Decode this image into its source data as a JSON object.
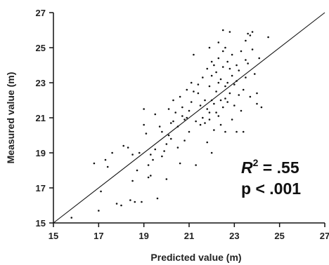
{
  "chart_data": {
    "type": "scatter",
    "title": "",
    "xlabel": "Predicted value (m)",
    "ylabel": "Measured value (m)",
    "xlim": [
      15,
      27
    ],
    "ylim": [
      15,
      27
    ],
    "xticks": [
      15,
      17,
      19,
      21,
      23,
      25,
      27
    ],
    "yticks": [
      15,
      17,
      19,
      21,
      23,
      25,
      27
    ],
    "grid": false,
    "annotation": {
      "r2_symbol": "R",
      "r2_exponent": "2",
      "r2_value": " = .55",
      "p_text": "p < .001"
    },
    "reference_line": {
      "x": [
        15,
        27
      ],
      "y": [
        15,
        27
      ]
    },
    "points": [
      [
        15.8,
        15.3
      ],
      [
        16.8,
        18.4
      ],
      [
        17.0,
        15.7
      ],
      [
        17.1,
        16.8
      ],
      [
        17.3,
        18.6
      ],
      [
        17.4,
        18.2
      ],
      [
        17.6,
        19.0
      ],
      [
        17.8,
        16.1
      ],
      [
        18.0,
        16.0
      ],
      [
        18.1,
        19.4
      ],
      [
        18.3,
        19.3
      ],
      [
        18.4,
        16.3
      ],
      [
        18.5,
        17.4
      ],
      [
        18.6,
        16.2
      ],
      [
        18.7,
        18.0
      ],
      [
        18.8,
        19.0
      ],
      [
        18.9,
        16.2
      ],
      [
        19.0,
        20.6
      ],
      [
        19.0,
        21.5
      ],
      [
        19.1,
        20.1
      ],
      [
        19.2,
        18.3
      ],
      [
        19.2,
        17.6
      ],
      [
        19.3,
        17.7
      ],
      [
        19.4,
        18.6
      ],
      [
        19.5,
        19.2
      ],
      [
        19.5,
        21.2
      ],
      [
        19.6,
        16.4
      ],
      [
        19.7,
        20.5
      ],
      [
        19.8,
        18.8
      ],
      [
        19.8,
        20.2
      ],
      [
        19.9,
        19.1
      ],
      [
        20.0,
        19.5
      ],
      [
        20.0,
        17.5
      ],
      [
        20.1,
        21.5
      ],
      [
        20.1,
        20.0
      ],
      [
        20.2,
        19.8
      ],
      [
        20.3,
        22.0
      ],
      [
        20.3,
        20.8
      ],
      [
        20.4,
        21.3
      ],
      [
        20.5,
        19.3
      ],
      [
        20.5,
        20.5
      ],
      [
        20.6,
        22.2
      ],
      [
        20.6,
        18.4
      ],
      [
        20.7,
        21.6
      ],
      [
        20.8,
        20.9
      ],
      [
        20.8,
        19.7
      ],
      [
        20.9,
        22.6
      ],
      [
        20.9,
        21.0
      ],
      [
        21.0,
        21.4
      ],
      [
        21.0,
        20.2
      ],
      [
        21.1,
        23.0
      ],
      [
        21.1,
        21.9
      ],
      [
        21.2,
        24.6
      ],
      [
        21.2,
        22.5
      ],
      [
        21.3,
        20.8
      ],
      [
        21.3,
        18.3
      ],
      [
        21.4,
        22.4
      ],
      [
        21.5,
        21.7
      ],
      [
        21.5,
        20.6
      ],
      [
        21.6,
        23.3
      ],
      [
        21.6,
        21.0
      ],
      [
        21.7,
        22.0
      ],
      [
        21.7,
        20.7
      ],
      [
        21.8,
        23.8
      ],
      [
        21.8,
        21.5
      ],
      [
        21.8,
        19.6
      ],
      [
        21.9,
        25.0
      ],
      [
        21.9,
        22.8
      ],
      [
        21.9,
        20.9
      ],
      [
        22.0,
        24.2
      ],
      [
        22.0,
        23.4
      ],
      [
        22.0,
        22.0
      ],
      [
        22.0,
        19.0
      ],
      [
        22.1,
        24.0
      ],
      [
        22.1,
        21.8
      ],
      [
        22.1,
        20.3
      ],
      [
        22.2,
        23.6
      ],
      [
        22.2,
        22.5
      ],
      [
        22.2,
        21.3
      ],
      [
        22.3,
        25.3
      ],
      [
        22.3,
        24.4
      ],
      [
        22.3,
        21.1
      ],
      [
        22.4,
        23.2
      ],
      [
        22.4,
        22.0
      ],
      [
        22.4,
        20.6
      ],
      [
        22.5,
        26.0
      ],
      [
        22.5,
        24.8
      ],
      [
        22.5,
        23.9
      ],
      [
        22.5,
        21.6
      ],
      [
        22.6,
        25.0
      ],
      [
        22.6,
        22.8
      ],
      [
        22.6,
        20.2
      ],
      [
        22.7,
        24.2
      ],
      [
        22.7,
        23.0
      ],
      [
        22.7,
        21.9
      ],
      [
        22.8,
        25.9
      ],
      [
        22.8,
        23.8
      ],
      [
        22.8,
        22.4
      ],
      [
        22.9,
        24.6
      ],
      [
        22.9,
        23.4
      ],
      [
        22.9,
        20.9
      ],
      [
        23.0,
        22.9
      ],
      [
        23.0,
        21.7
      ],
      [
        23.1,
        24.0
      ],
      [
        23.1,
        20.2
      ],
      [
        23.2,
        23.7
      ],
      [
        23.2,
        22.3
      ],
      [
        23.3,
        24.8
      ],
      [
        23.3,
        21.4
      ],
      [
        23.4,
        22.6
      ],
      [
        23.4,
        20.2
      ],
      [
        23.5,
        25.4
      ],
      [
        23.5,
        24.3
      ],
      [
        23.5,
        23.3
      ],
      [
        23.6,
        25.8
      ],
      [
        23.6,
        24.1
      ],
      [
        23.7,
        25.7
      ],
      [
        23.7,
        22.2
      ],
      [
        23.8,
        25.9
      ],
      [
        23.8,
        24.9
      ],
      [
        23.9,
        23.5
      ],
      [
        24.0,
        22.4
      ],
      [
        24.0,
        21.8
      ],
      [
        24.1,
        24.4
      ],
      [
        24.2,
        21.6
      ],
      [
        24.5,
        25.6
      ],
      [
        19.3,
        18.9
      ],
      [
        20.7,
        21.1
      ],
      [
        21.4,
        22.9
      ],
      [
        22.6,
        22.1
      ],
      [
        23.1,
        23.1
      ],
      [
        20.2,
        20.7
      ],
      [
        21.9,
        21.3
      ],
      [
        18.5,
        18.9
      ],
      [
        22.3,
        23.0
      ]
    ]
  }
}
